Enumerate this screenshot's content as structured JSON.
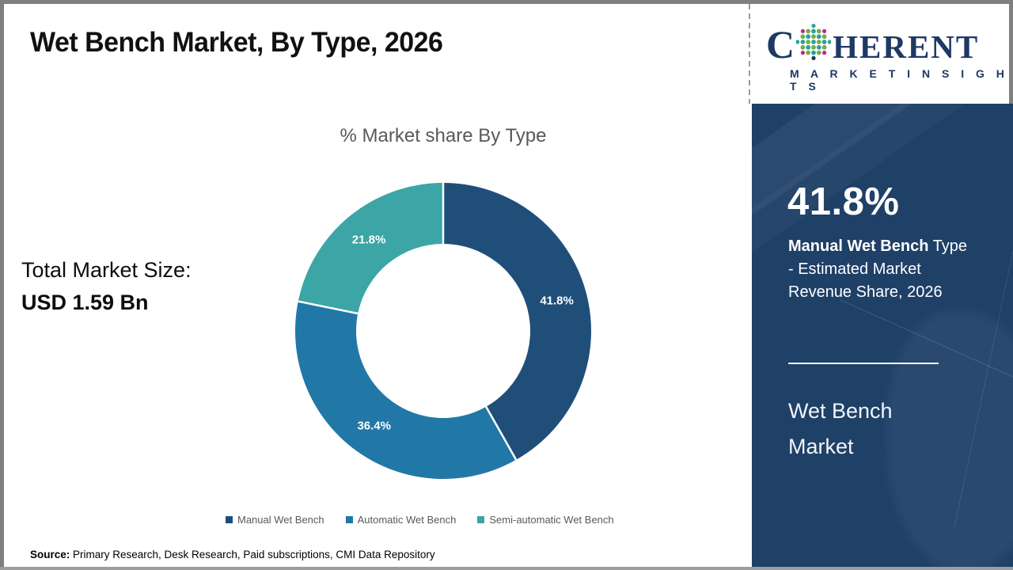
{
  "header": {
    "title": "Wet Bench Market, By Type, 2026"
  },
  "logo": {
    "c": "C",
    "rest": "HERENT",
    "subtitle": "M A R K E T   I N S I G H T S"
  },
  "left_panel": {
    "total_label": "Total Market Size:",
    "total_value": "USD 1.59 Bn"
  },
  "chart_data": {
    "type": "pie",
    "subtype": "donut",
    "title": "% Market share By Type",
    "categories": [
      "Manual Wet Bench",
      "Automatic Wet Bench",
      "Semi-automatic Wet Bench"
    ],
    "values": [
      41.8,
      36.4,
      21.8
    ],
    "labels": [
      "41.8%",
      "36.4%",
      "21.8%"
    ],
    "colors": [
      "#1f4e79",
      "#2178a7",
      "#3ba6a5"
    ],
    "hole_ratio": 0.59,
    "start_angle_deg": 0,
    "direction": "clockwise",
    "legend_position": "bottom",
    "data_label_color": "#ffffff"
  },
  "sidebar": {
    "stat_value": "41.8%",
    "stat_desc_bold": "Manual Wet Bench",
    "stat_desc_rest": " Type - Estimated Market Revenue Share, 2026",
    "market_name_line1": "Wet Bench",
    "market_name_line2": "Market",
    "bg_color": "#1f4067"
  },
  "footer": {
    "source_label": "Source:",
    "source_text": " Primary Research, Desk Research, Paid subscriptions, CMI Data Repository"
  },
  "colors": {
    "logo_navy": "#1f3864",
    "title_black": "#111111",
    "muted_gray_text": "#595959",
    "frame_gray": "#7f7f7f"
  }
}
